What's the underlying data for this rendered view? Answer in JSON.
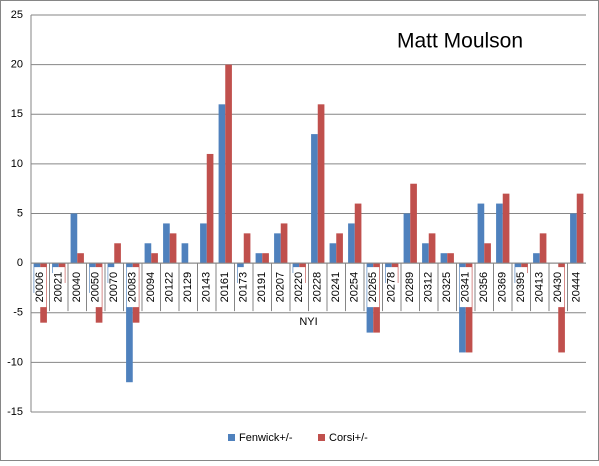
{
  "chart_data": {
    "type": "bar",
    "title": "Matt Moulson",
    "categories": [
      "20006",
      "20021",
      "20040",
      "20050",
      "20070",
      "20083",
      "20094",
      "20122",
      "20129",
      "20143",
      "20161",
      "20173",
      "20191",
      "20207",
      "20220",
      "20228",
      "20241",
      "20254",
      "20265",
      "20278",
      "20289",
      "20312",
      "20325",
      "20341",
      "20356",
      "20369",
      "20395",
      "20413",
      "20430",
      "20444"
    ],
    "group_label": "NYI",
    "series": [
      {
        "name": "Fenwick+/-",
        "color": "#4f81bd",
        "values": [
          -3,
          -1,
          5,
          -3,
          -2,
          -12,
          2,
          4,
          2,
          4,
          16,
          -2,
          1,
          3,
          -1,
          13,
          2,
          4,
          -7,
          -2,
          5,
          2,
          1,
          -9,
          6,
          6,
          -2,
          1,
          0,
          5
        ]
      },
      {
        "name": "Corsi+/-",
        "color": "#c0504d",
        "values": [
          -6,
          -2,
          1,
          -6,
          2,
          -6,
          1,
          3,
          0,
          11,
          20,
          3,
          1,
          4,
          -2,
          16,
          3,
          6,
          -7,
          -2,
          8,
          3,
          1,
          -9,
          2,
          7,
          -1,
          3,
          -9,
          7
        ]
      }
    ],
    "ylim": [
      -15,
      25
    ],
    "yticks": [
      -15,
      -10,
      -5,
      0,
      5,
      10,
      15,
      20,
      25
    ],
    "grid": true,
    "legend": "bottom"
  }
}
